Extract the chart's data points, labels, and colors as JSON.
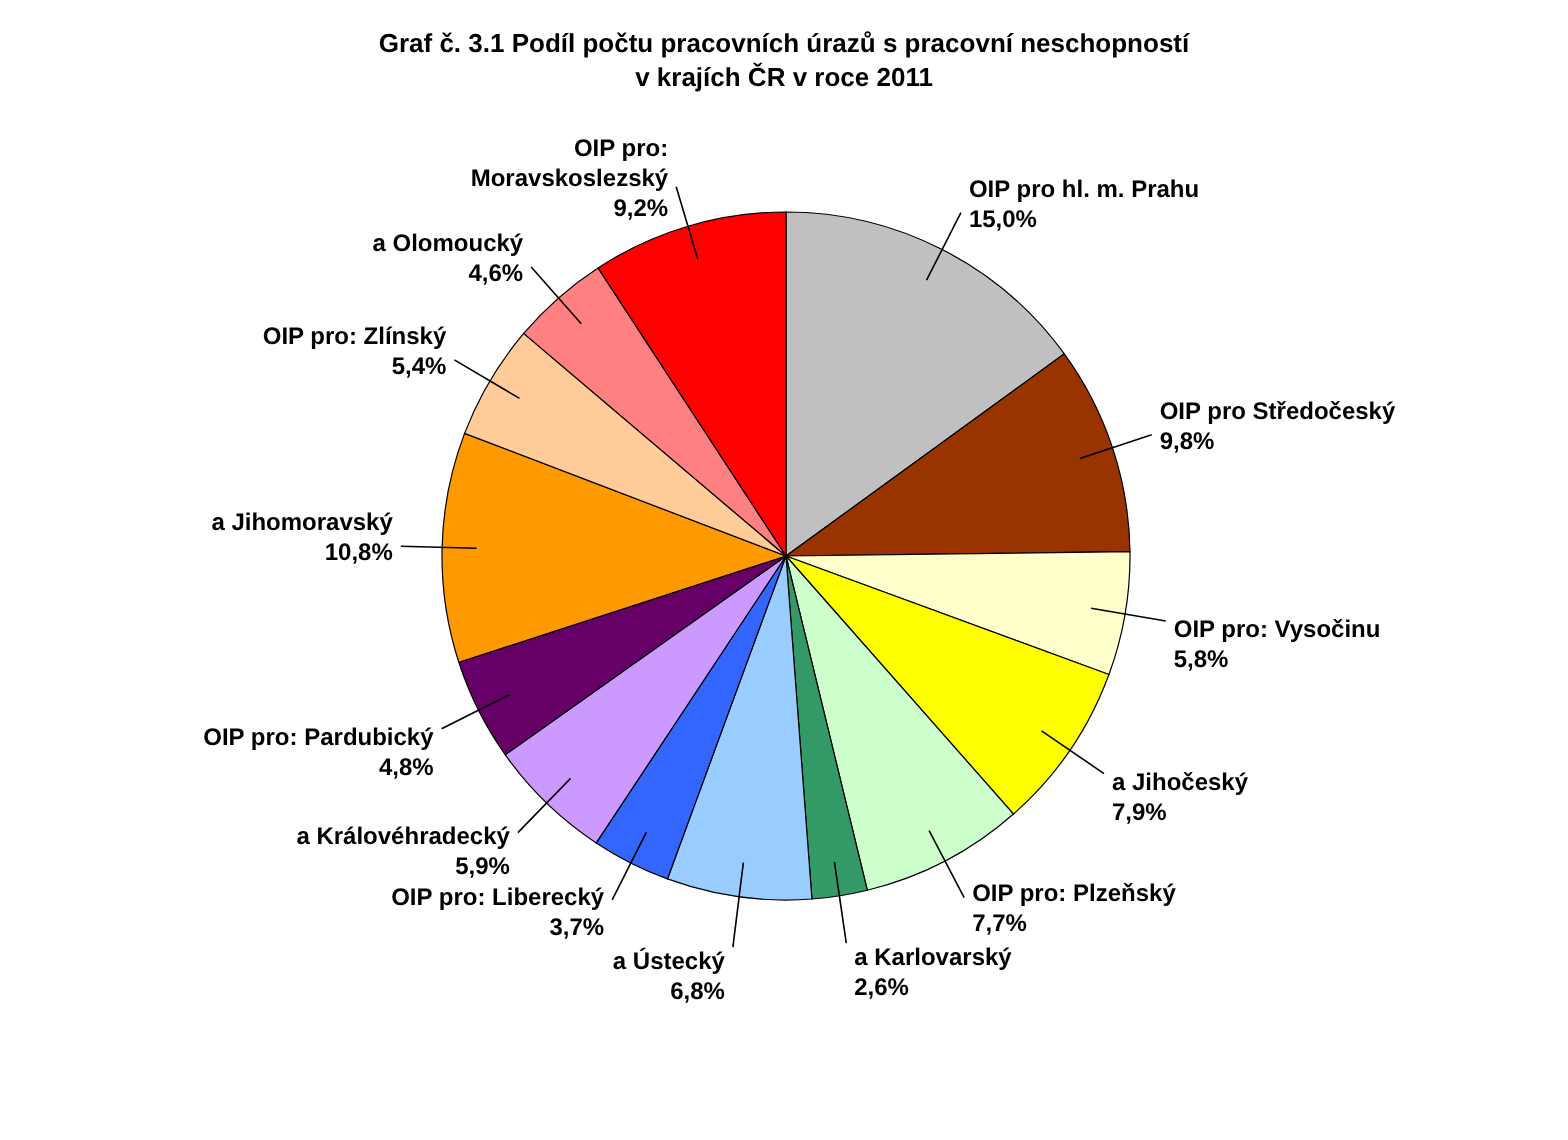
{
  "chart_data": {
    "type": "pie",
    "title": "Graf č. 3.1  Podíl počtu pracovních úrazů s pracovní neschopností v krajích ČR v roce 2011",
    "categories": [
      "OIP pro hl. m. Prahu",
      "OIP pro Středočeský",
      "OIP pro: Vysočinu",
      "a Jihočeský",
      "OIP pro: Plzeňský",
      "a Karlovarský",
      "a Ústecký",
      "OIP pro: Liberecký",
      "a Královéhradecký",
      "OIP pro: Pardubický",
      "a Jihomoravský",
      "OIP pro: Zlínský",
      "a Olomoucký",
      "OIP pro: Moravskoslezský"
    ],
    "values": [
      15.0,
      9.8,
      5.8,
      7.9,
      7.7,
      2.6,
      6.8,
      3.7,
      5.9,
      4.8,
      10.8,
      5.4,
      4.6,
      9.2
    ],
    "value_labels": [
      "15,0%",
      "9,8%",
      "5,8%",
      "7,9%",
      "7,7%",
      "2,6%",
      "6,8%",
      "3,7%",
      "5,9%",
      "4,8%",
      "10,8%",
      "5,4%",
      "4,6%",
      "9,2%"
    ],
    "colors": [
      "#c0c0c0",
      "#993300",
      "#ffffcc",
      "#ffff00",
      "#ccffcc",
      "#339966",
      "#99ccff",
      "#3366ff",
      "#cc99ff",
      "#660066",
      "#ff9900",
      "#ffcc99",
      "#ff8080",
      "#ff0000"
    ]
  }
}
